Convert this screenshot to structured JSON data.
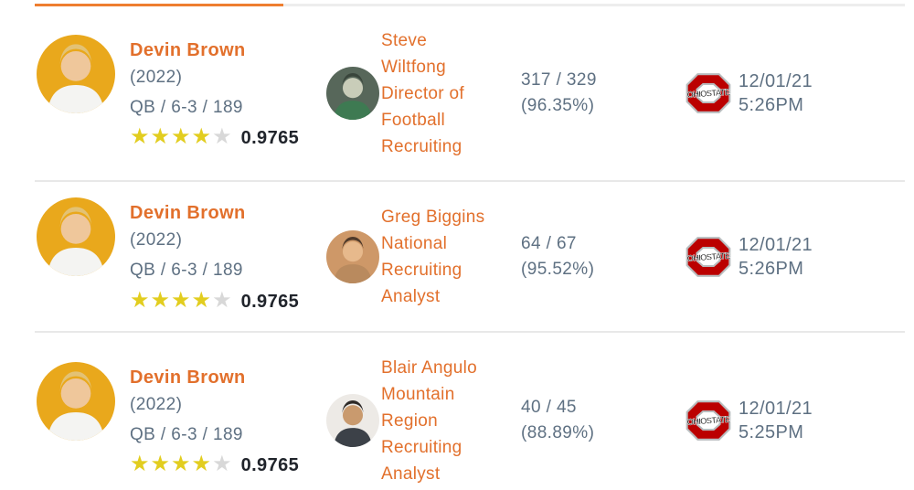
{
  "page": {
    "accent_color": "#E2702C",
    "progress": {
      "filled_color": "#EE7E30",
      "track_color": "#EDEDED"
    },
    "star_filled_color": "#E2CD1F",
    "star_empty_color": "#D8D8D8"
  },
  "rows": [
    {
      "player": {
        "name": "Devin Brown",
        "class_year": "(2022)",
        "vitals": "QB / 6-3 / 189",
        "stars": 4,
        "stars_total": 5,
        "rating": "0.9765",
        "avatar": {
          "bg": "#E9A81C",
          "skin": "#EFC79B",
          "hair": "#E3C275",
          "shirt": "#F4F4F2"
        }
      },
      "expert": {
        "name": "Steve Wiltfong",
        "title": "Director of Football Recruiting",
        "avatar": {
          "bg": "#57675A",
          "skin": "#C9CDB9",
          "hair": "#39453B",
          "shirt": "#3E7A52"
        }
      },
      "stats": {
        "record": "317 / 329",
        "accuracy": "(96.35%)"
      },
      "prediction": {
        "team": "Ohio State",
        "logo": "ohio-state-logo",
        "date": "12/01/21",
        "time": "5:26PM"
      }
    },
    {
      "player": {
        "name": "Devin Brown",
        "class_year": "(2022)",
        "vitals": "QB / 6-3 / 189",
        "stars": 4,
        "stars_total": 5,
        "rating": "0.9765",
        "avatar": {
          "bg": "#E9A81C",
          "skin": "#EFC79B",
          "hair": "#E3C275",
          "shirt": "#F4F4F2"
        }
      },
      "expert": {
        "name": "Greg Biggins",
        "title": "National Recruiting Analyst",
        "avatar": {
          "bg": "#CE9868",
          "skin": "#E7B98C",
          "hair": "#4F3A2A",
          "shirt": "#B98A5E"
        }
      },
      "stats": {
        "record": "64 / 67",
        "accuracy": "(95.52%)"
      },
      "prediction": {
        "team": "Ohio State",
        "logo": "ohio-state-logo",
        "date": "12/01/21",
        "time": "5:26PM"
      }
    },
    {
      "player": {
        "name": "Devin Brown",
        "class_year": "(2022)",
        "vitals": "QB / 6-3 / 189",
        "stars": 4,
        "stars_total": 5,
        "rating": "0.9765",
        "avatar": {
          "bg": "#E9A81C",
          "skin": "#EFC79B",
          "hair": "#E3C275",
          "shirt": "#F4F4F2"
        }
      },
      "expert": {
        "name": "Blair Angulo",
        "title": "Mountain Region Recruiting Analyst",
        "avatar": {
          "bg": "#EDEAE6",
          "skin": "#C99A6E",
          "hair": "#2E2A28",
          "shirt": "#3C4148"
        }
      },
      "stats": {
        "record": "40 / 45",
        "accuracy": "(88.89%)"
      },
      "prediction": {
        "team": "Ohio State",
        "logo": "ohio-state-logo",
        "date": "12/01/21",
        "time": "5:25PM"
      }
    }
  ]
}
